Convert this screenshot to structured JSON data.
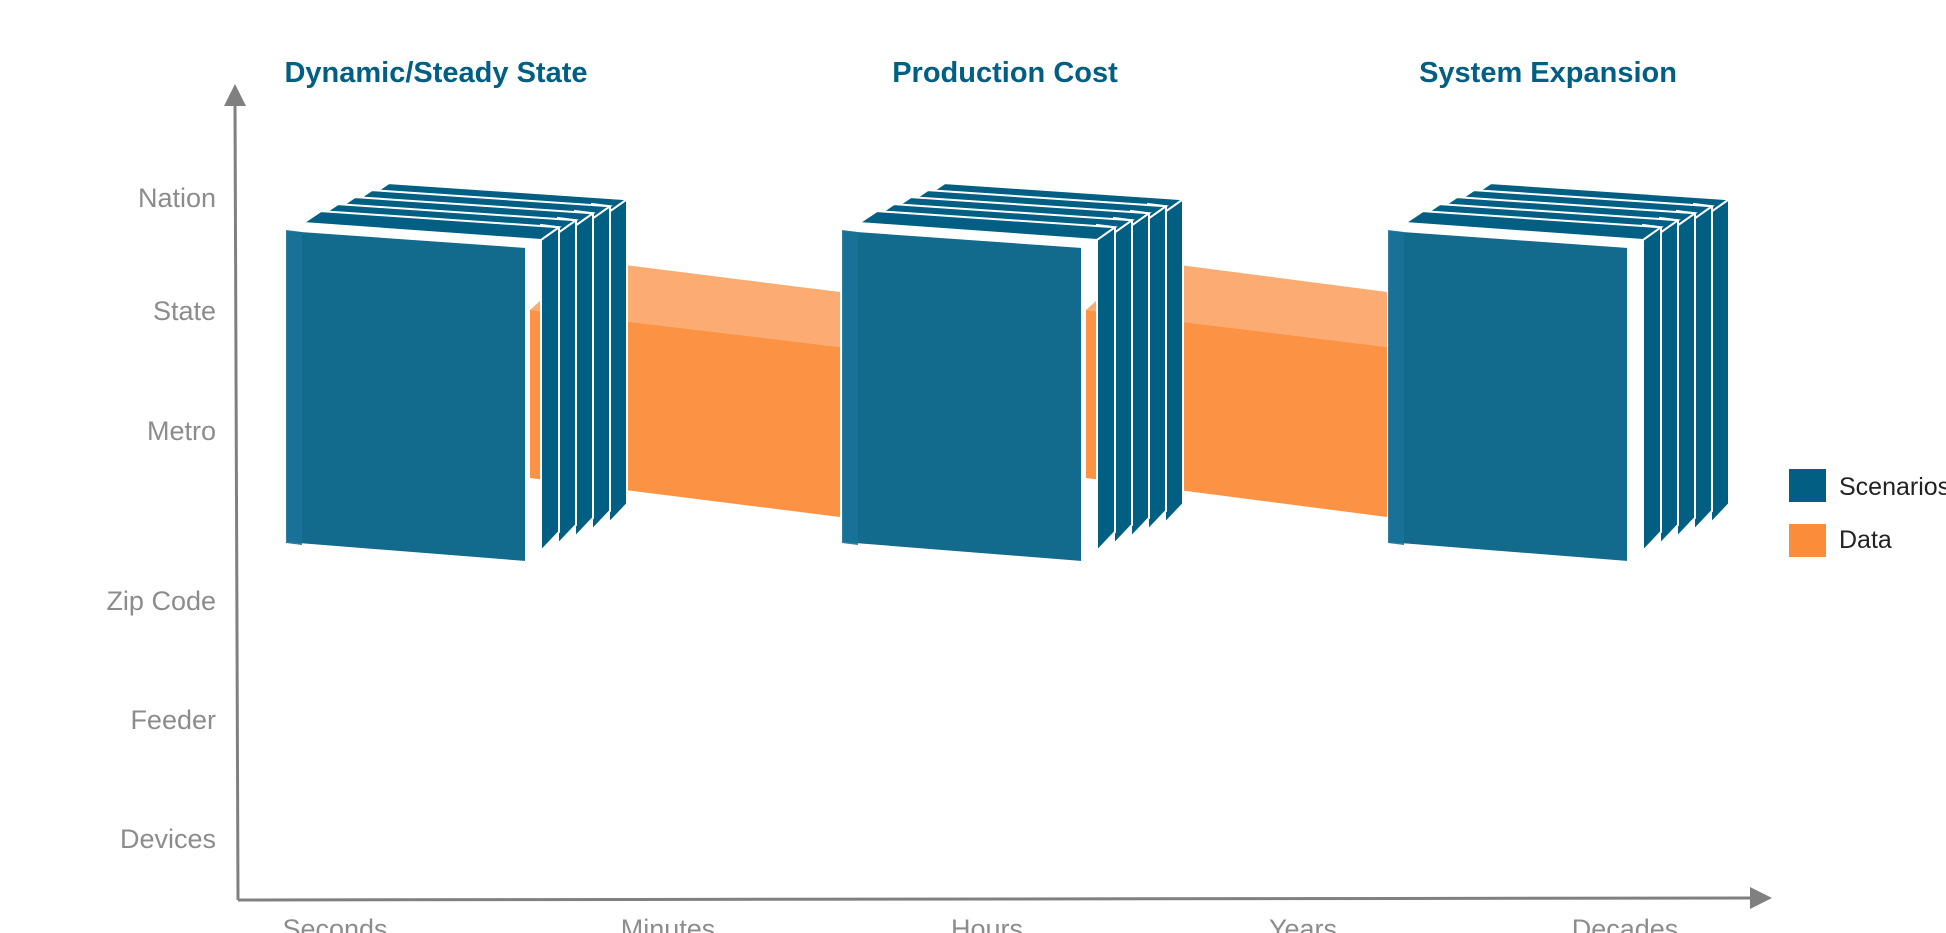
{
  "colors": {
    "scenario": "#005f83",
    "data": "#fb8c3a",
    "data_top": "#fca86a",
    "axis": "#808080",
    "title": "#005f83",
    "label": "#8c8c8c"
  },
  "groups": [
    {
      "title": "Dynamic/Steady State"
    },
    {
      "title": "Production Cost"
    },
    {
      "title": "System Expansion"
    }
  ],
  "y_axis": {
    "labels": [
      "Nation",
      "State",
      "Metro",
      "Zip Code",
      "Feeder",
      "Devices"
    ]
  },
  "x_axis": {
    "labels": [
      "Seconds",
      "Minutes",
      "Hours",
      "Years",
      "Decades"
    ]
  },
  "legend": {
    "items": [
      {
        "label": "Scenarios",
        "color": "#005f83"
      },
      {
        "label": "Data",
        "color": "#fb8c3a"
      }
    ]
  }
}
